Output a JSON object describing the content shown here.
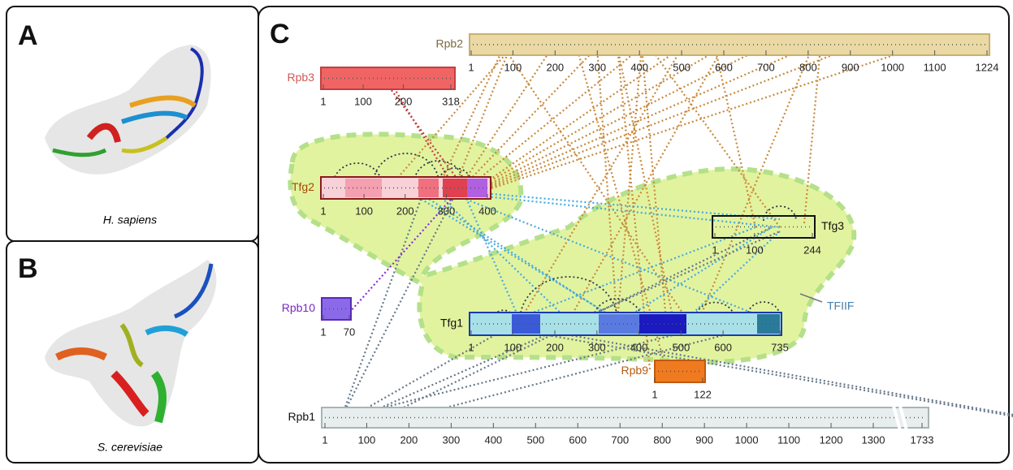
{
  "panels": [
    {
      "label": "A",
      "caption": "H. sapiens"
    },
    {
      "label": "B",
      "caption": "S. cerevisiae"
    },
    {
      "label": "C"
    }
  ],
  "proteins": [
    {
      "name": "Rpb2",
      "ticks": [
        1,
        100,
        200,
        300,
        400,
        500,
        600,
        700,
        800,
        900,
        1000,
        1100,
        1224
      ]
    },
    {
      "name": "Rpb3",
      "ticks": [
        1,
        100,
        200,
        318
      ]
    },
    {
      "name": "Tfg2",
      "ticks": [
        1,
        100,
        200,
        300,
        400
      ]
    },
    {
      "name": "Tfg3",
      "ticks": [
        1,
        100,
        244
      ]
    },
    {
      "name": "Rpb10",
      "ticks": [
        1,
        70
      ]
    },
    {
      "name": "Tfg1",
      "ticks": [
        1,
        100,
        200,
        300,
        400,
        500,
        600,
        735
      ]
    },
    {
      "name": "Rpb9",
      "ticks": [
        1,
        122
      ]
    },
    {
      "name": "Rpb1",
      "ticks": [
        1,
        100,
        200,
        300,
        400,
        500,
        600,
        700,
        800,
        900,
        1000,
        1100,
        1200,
        1300,
        1733
      ]
    }
  ],
  "annotation": "TFIIF"
}
